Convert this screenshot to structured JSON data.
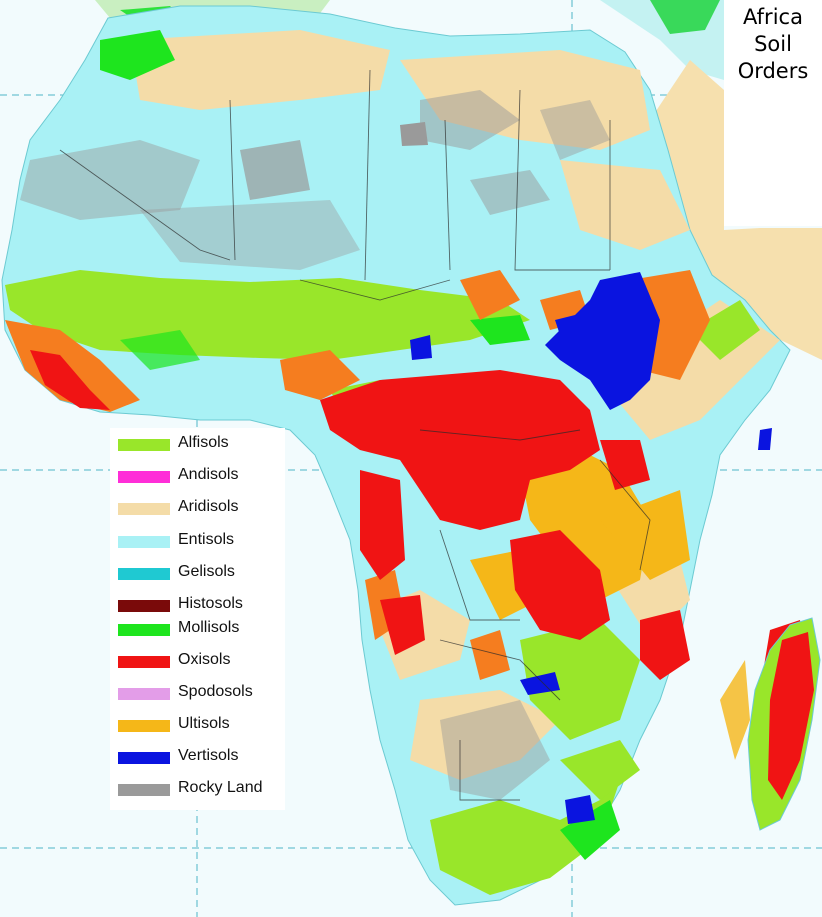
{
  "title": {
    "lines": [
      "Africa",
      "Soil",
      "Orders"
    ]
  },
  "legend": {
    "items": [
      {
        "label": "Alfisols",
        "color": "#99e62a"
      },
      {
        "label": "Andisols",
        "color": "#ff2ed8"
      },
      {
        "label": "Aridisols",
        "color": "#f4dca8"
      },
      {
        "label": "Entisols",
        "color": "#a9f1f5"
      },
      {
        "label": "Gelisols",
        "color": "#1fc9d2"
      },
      {
        "label": "Histosols",
        "color": "#7a0a0a"
      },
      {
        "label": "Mollisols",
        "color": "#1ee51e"
      },
      {
        "label": "Oxisols",
        "color": "#f01414"
      },
      {
        "label": "Spodosols",
        "color": "#e39de8"
      },
      {
        "label": "Ultisols",
        "color": "#f5b718"
      },
      {
        "label": "Vertisols",
        "color": "#0a14e0"
      },
      {
        "label": "Rocky Land",
        "color": "#9a9a9a"
      }
    ]
  },
  "colors": {
    "ocean": "#f2fbfd",
    "grid_line": "#4fb6c8",
    "border_line": "#2a2a2a"
  }
}
